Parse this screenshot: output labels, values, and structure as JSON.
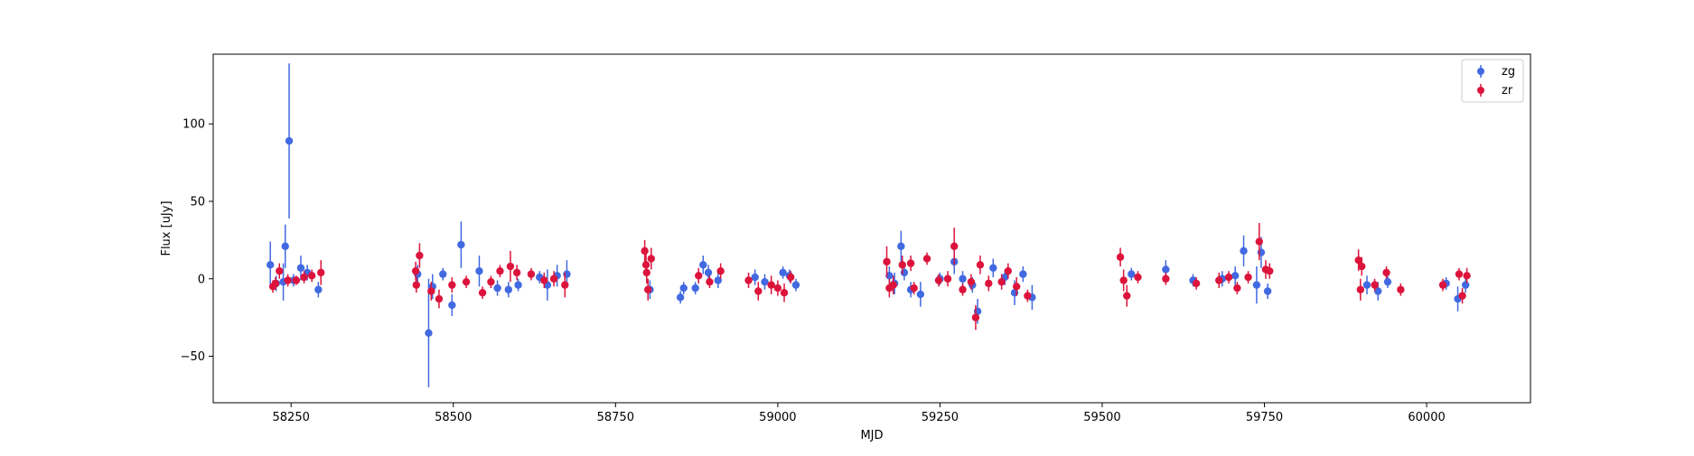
{
  "chart_data": {
    "type": "scatter",
    "title": "",
    "xlabel": "MJD",
    "ylabel": "Flux [uJy]",
    "xlim": [
      58130,
      60160
    ],
    "ylim": [
      -80,
      145
    ],
    "x_ticks": [
      58250,
      58500,
      58750,
      59000,
      59250,
      59500,
      59750,
      60000
    ],
    "x_tick_labels": [
      "58250",
      "58500",
      "58750",
      "59000",
      "59250",
      "59500",
      "59750",
      "60000"
    ],
    "y_ticks": [
      -50,
      0,
      50,
      100
    ],
    "y_tick_labels": [
      "−50",
      "0",
      "50",
      "100"
    ],
    "grid": false,
    "legend": {
      "location": "top-right"
    },
    "error_bars": true,
    "series": [
      {
        "name": "zg",
        "color": "#4169e1",
        "points": [
          [
            58218,
            9,
            15
          ],
          [
            58227,
            -3,
            5
          ],
          [
            58238,
            -2,
            12
          ],
          [
            58241,
            21,
            14
          ],
          [
            58247,
            89,
            50
          ],
          [
            58254,
            -1,
            4
          ],
          [
            58265,
            7,
            8
          ],
          [
            58275,
            4,
            5
          ],
          [
            58292,
            -7,
            5
          ],
          [
            58445,
            3,
            6
          ],
          [
            58462,
            -35,
            35
          ],
          [
            58468,
            -5,
            8
          ],
          [
            58484,
            3,
            4
          ],
          [
            58498,
            -17,
            7
          ],
          [
            58512,
            22,
            15
          ],
          [
            58540,
            5,
            10
          ],
          [
            58568,
            -6,
            5
          ],
          [
            58585,
            -7,
            5
          ],
          [
            58600,
            -4,
            4
          ],
          [
            58633,
            1,
            4
          ],
          [
            58645,
            -4,
            10
          ],
          [
            58660,
            2,
            7
          ],
          [
            58675,
            3,
            9
          ],
          [
            58803,
            -7,
            6
          ],
          [
            58850,
            -12,
            4
          ],
          [
            58855,
            -6,
            4
          ],
          [
            58873,
            -6,
            4
          ],
          [
            58885,
            9,
            6
          ],
          [
            58893,
            4,
            5
          ],
          [
            58908,
            -1,
            5
          ],
          [
            58965,
            1,
            5
          ],
          [
            58980,
            -2,
            5
          ],
          [
            59008,
            4,
            4
          ],
          [
            59018,
            2,
            4
          ],
          [
            59028,
            -4,
            4
          ],
          [
            59172,
            2,
            6
          ],
          [
            59180,
            -3,
            7
          ],
          [
            59190,
            21,
            10
          ],
          [
            59195,
            4,
            5
          ],
          [
            59205,
            -7,
            5
          ],
          [
            59220,
            -10,
            8
          ],
          [
            59250,
            0,
            4
          ],
          [
            59272,
            11,
            8
          ],
          [
            59285,
            0,
            5
          ],
          [
            59300,
            -4,
            5
          ],
          [
            59308,
            -21,
            8
          ],
          [
            59332,
            7,
            6
          ],
          [
            59350,
            1,
            5
          ],
          [
            59365,
            -9,
            8
          ],
          [
            59378,
            3,
            5
          ],
          [
            59392,
            -12,
            8
          ],
          [
            59545,
            3,
            4
          ],
          [
            59598,
            6,
            6
          ],
          [
            59640,
            -1,
            4
          ],
          [
            59685,
            0,
            5
          ],
          [
            59705,
            2,
            6
          ],
          [
            59718,
            18,
            10
          ],
          [
            59738,
            -4,
            12
          ],
          [
            59745,
            17,
            10
          ],
          [
            59755,
            -8,
            5
          ],
          [
            59908,
            -4,
            6
          ],
          [
            59925,
            -8,
            6
          ],
          [
            59940,
            -2,
            4
          ],
          [
            60030,
            -3,
            4
          ],
          [
            60048,
            -13,
            8
          ],
          [
            60060,
            -4,
            5
          ]
        ]
      },
      {
        "name": "zr",
        "color": "#dc143c",
        "points": [
          [
            58222,
            -5,
            4
          ],
          [
            58226,
            -3,
            4
          ],
          [
            58232,
            5,
            5
          ],
          [
            58245,
            -1,
            4
          ],
          [
            58258,
            -1,
            3
          ],
          [
            58270,
            1,
            4
          ],
          [
            58282,
            2,
            4
          ],
          [
            58296,
            4,
            8
          ],
          [
            58442,
            5,
            6
          ],
          [
            58443,
            -4,
            5
          ],
          [
            58448,
            15,
            8
          ],
          [
            58466,
            -8,
            6
          ],
          [
            58478,
            -13,
            6
          ],
          [
            58498,
            -4,
            5
          ],
          [
            58520,
            -2,
            4
          ],
          [
            58545,
            -9,
            4
          ],
          [
            58558,
            -2,
            4
          ],
          [
            58572,
            5,
            4
          ],
          [
            58588,
            8,
            10
          ],
          [
            58598,
            4,
            5
          ],
          [
            58620,
            3,
            4
          ],
          [
            58640,
            -1,
            5
          ],
          [
            58655,
            0,
            5
          ],
          [
            58672,
            -4,
            8
          ],
          [
            58795,
            18,
            7
          ],
          [
            58797,
            9,
            7
          ],
          [
            58798,
            4,
            7
          ],
          [
            58800,
            -7,
            7
          ],
          [
            58805,
            13,
            7
          ],
          [
            58878,
            2,
            5
          ],
          [
            58895,
            -2,
            4
          ],
          [
            58912,
            5,
            5
          ],
          [
            58955,
            -1,
            5
          ],
          [
            58970,
            -8,
            6
          ],
          [
            58990,
            -4,
            6
          ],
          [
            59000,
            -6,
            5
          ],
          [
            59010,
            -9,
            6
          ],
          [
            59020,
            1,
            4
          ],
          [
            59168,
            11,
            10
          ],
          [
            59172,
            -6,
            6
          ],
          [
            59178,
            -4,
            6
          ],
          [
            59192,
            9,
            6
          ],
          [
            59205,
            10,
            5
          ],
          [
            59210,
            -6,
            4
          ],
          [
            59230,
            13,
            4
          ],
          [
            59248,
            -1,
            4
          ],
          [
            59262,
            0,
            5
          ],
          [
            59272,
            21,
            12
          ],
          [
            59285,
            -7,
            4
          ],
          [
            59298,
            -2,
            5
          ],
          [
            59305,
            -25,
            8
          ],
          [
            59312,
            9,
            6
          ],
          [
            59325,
            -3,
            5
          ],
          [
            59345,
            -2,
            5
          ],
          [
            59355,
            5,
            5
          ],
          [
            59368,
            -5,
            6
          ],
          [
            59385,
            -11,
            4
          ],
          [
            59528,
            14,
            6
          ],
          [
            59533,
            -1,
            7
          ],
          [
            59538,
            -11,
            7
          ],
          [
            59555,
            1,
            4
          ],
          [
            59598,
            0,
            4
          ],
          [
            59645,
            -3,
            4
          ],
          [
            59680,
            -1,
            5
          ],
          [
            59695,
            1,
            4
          ],
          [
            59708,
            -6,
            4
          ],
          [
            59725,
            1,
            4
          ],
          [
            59742,
            24,
            12
          ],
          [
            59752,
            6,
            6
          ],
          [
            59758,
            5,
            5
          ],
          [
            59895,
            12,
            7
          ],
          [
            59898,
            -7,
            7
          ],
          [
            59900,
            8,
            6
          ],
          [
            59920,
            -4,
            4
          ],
          [
            59938,
            4,
            4
          ],
          [
            59960,
            -7,
            4
          ],
          [
            60025,
            -4,
            4
          ],
          [
            60050,
            3,
            4
          ],
          [
            60055,
            -11,
            5
          ],
          [
            60062,
            2,
            5
          ]
        ]
      }
    ]
  }
}
